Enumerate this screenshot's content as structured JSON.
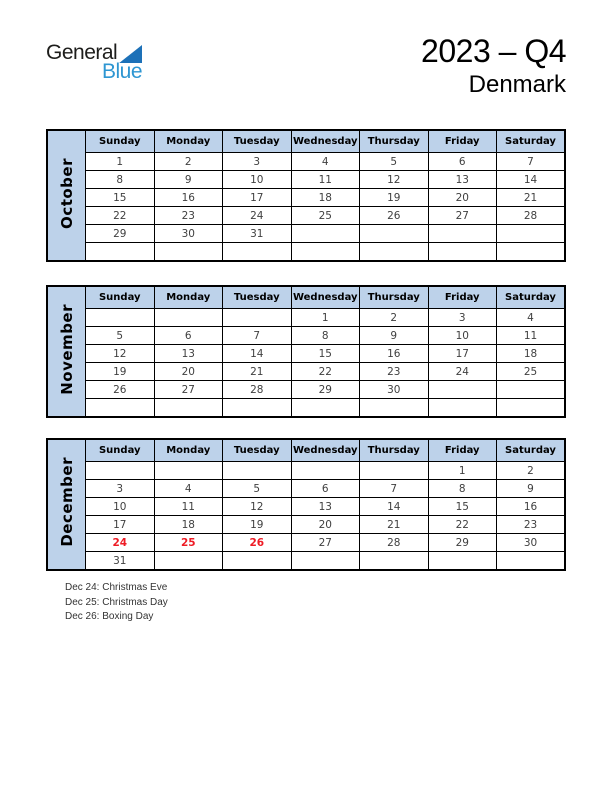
{
  "page": {
    "logo": {
      "part1": "General",
      "part2": "Blue"
    },
    "title": "2023 – Q4",
    "subtitle": "Denmark",
    "colors": {
      "table_header_bg": "#bdd2ea",
      "holiday_red": "#ee1c25",
      "day_text": "#404040",
      "logo_dark": "#1d1d1b",
      "logo_blue_text": "#2e96d2",
      "logo_triangle": "#1d71b8"
    }
  },
  "weekdays": [
    "Sunday",
    "Monday",
    "Tuesday",
    "Wednesday",
    "Thursday",
    "Friday",
    "Saturday"
  ],
  "months": [
    {
      "name": "October",
      "holiday_days": [],
      "weeks": [
        [
          "1",
          "2",
          "3",
          "4",
          "5",
          "6",
          "7"
        ],
        [
          "8",
          "9",
          "10",
          "11",
          "12",
          "13",
          "14"
        ],
        [
          "15",
          "16",
          "17",
          "18",
          "19",
          "20",
          "21"
        ],
        [
          "22",
          "23",
          "24",
          "25",
          "26",
          "27",
          "28"
        ],
        [
          "29",
          "30",
          "31",
          "",
          "",
          "",
          ""
        ],
        [
          "",
          "",
          "",
          "",
          "",
          "",
          ""
        ]
      ]
    },
    {
      "name": "November",
      "holiday_days": [],
      "weeks": [
        [
          "",
          "",
          "",
          "1",
          "2",
          "3",
          "4"
        ],
        [
          "5",
          "6",
          "7",
          "8",
          "9",
          "10",
          "11"
        ],
        [
          "12",
          "13",
          "14",
          "15",
          "16",
          "17",
          "18"
        ],
        [
          "19",
          "20",
          "21",
          "22",
          "23",
          "24",
          "25"
        ],
        [
          "26",
          "27",
          "28",
          "29",
          "30",
          "",
          ""
        ],
        [
          "",
          "",
          "",
          "",
          "",
          "",
          ""
        ]
      ]
    },
    {
      "name": "December",
      "holiday_days": [
        24,
        25,
        26
      ],
      "weeks": [
        [
          "",
          "",
          "",
          "",
          "",
          "1",
          "2"
        ],
        [
          "3",
          "4",
          "5",
          "6",
          "7",
          "8",
          "9"
        ],
        [
          "10",
          "11",
          "12",
          "13",
          "14",
          "15",
          "16"
        ],
        [
          "17",
          "18",
          "19",
          "20",
          "21",
          "22",
          "23"
        ],
        [
          "24",
          "25",
          "26",
          "27",
          "28",
          "29",
          "30"
        ],
        [
          "31",
          "",
          "",
          "",
          "",
          "",
          ""
        ]
      ]
    }
  ],
  "footnotes": [
    "Dec 24: Christmas Eve",
    "Dec 25: Christmas Day",
    "Dec 26: Boxing Day"
  ]
}
